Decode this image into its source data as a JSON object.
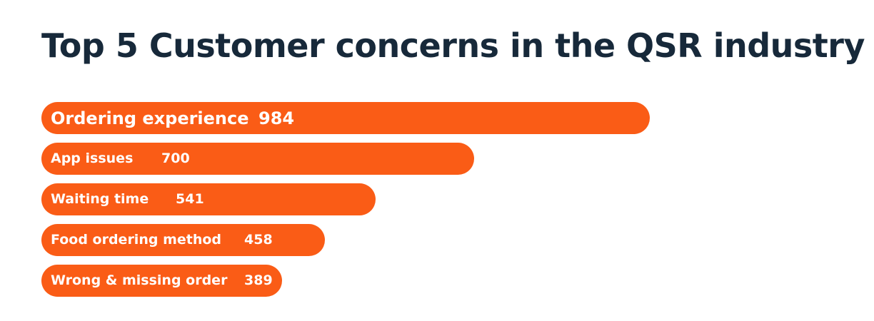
{
  "title": "Top 5 Customer concerns in the QSR industry",
  "colors": {
    "title": "#17293a",
    "bar": "#fa5c16",
    "text_on_bar": "#ffffff",
    "background": "#ffffff"
  },
  "chart_data": {
    "type": "bar",
    "orientation": "horizontal",
    "title": "Top 5 Customer concerns in the QSR industry",
    "categories": [
      "Ordering experience",
      "App issues",
      "Waiting time",
      "Food ordering method",
      "Wrong & missing order"
    ],
    "values": [
      984,
      700,
      541,
      458,
      389
    ],
    "xlabel": "",
    "ylabel": "",
    "grid": false,
    "legend": "none"
  }
}
